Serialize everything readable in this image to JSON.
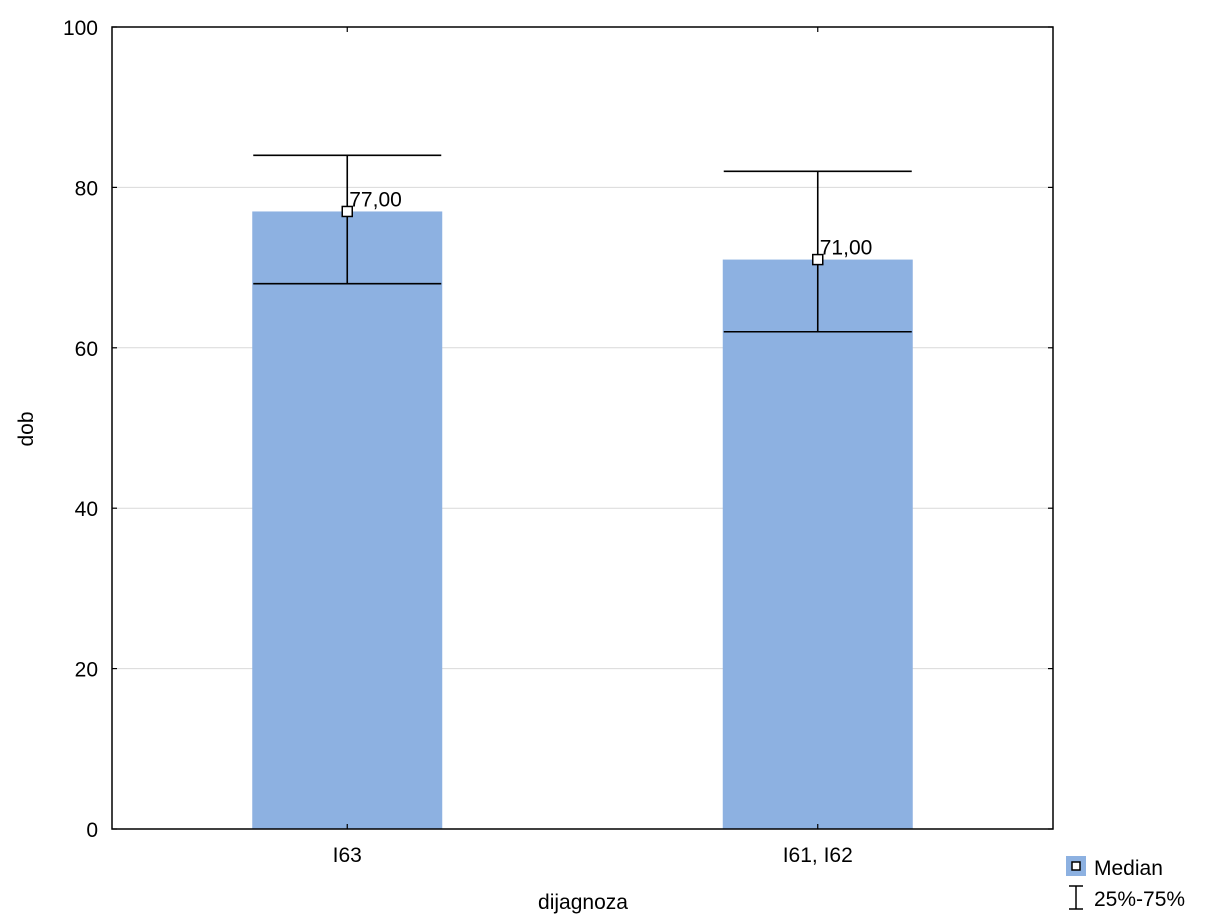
{
  "chart_data": {
    "type": "bar",
    "title": "",
    "xlabel": "dijagnoza",
    "ylabel": "dob",
    "categories": [
      "I63",
      "I61, I62"
    ],
    "series": [
      {
        "name": "Median",
        "values": [
          77,
          71
        ],
        "data_labels": [
          "77,00",
          "71,00"
        ],
        "q25": [
          68,
          62
        ],
        "q75": [
          84,
          82
        ]
      }
    ],
    "ylim": [
      0,
      100
    ],
    "yticks": [
      0,
      20,
      40,
      60,
      80,
      100
    ],
    "ytick_labels": [
      "0",
      "20",
      "40",
      "60",
      "80",
      "100"
    ],
    "grid": "horizontal",
    "legend": {
      "placement": "bottom-right",
      "items": [
        {
          "symbol": "square-marker",
          "label": "Median"
        },
        {
          "symbol": "error-bar",
          "label": "25%-75%"
        }
      ]
    },
    "colors": {
      "bar": "#8db1e1",
      "grid": "#d9d9d9",
      "axis": "#000000"
    }
  }
}
